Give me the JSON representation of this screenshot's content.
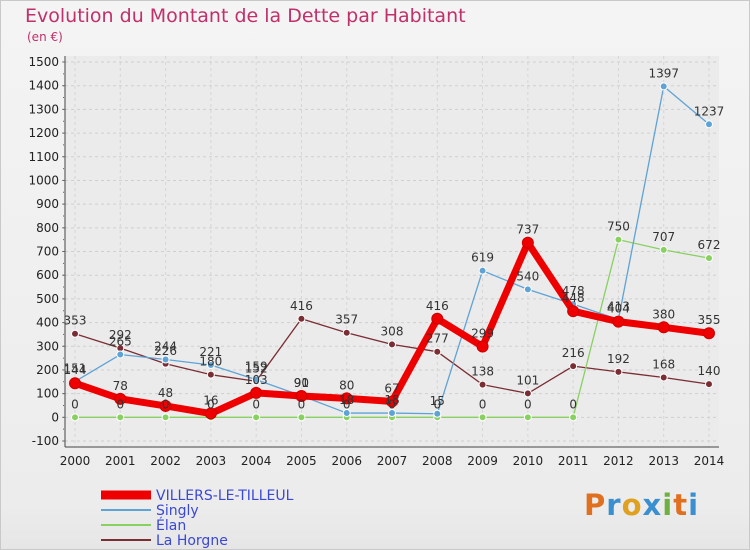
{
  "chart_data": {
    "type": "line",
    "title": "Evolution du Montant de la Dette par Habitant",
    "subtitle": "(en €)",
    "x": [
      "2000",
      "2001",
      "2002",
      "2003",
      "2004",
      "2005",
      "2006",
      "2007",
      "2008",
      "2009",
      "2010",
      "2011",
      "2012",
      "2013",
      "2014"
    ],
    "yticks": [
      -100,
      0,
      100,
      200,
      300,
      400,
      500,
      600,
      700,
      800,
      900,
      1000,
      1100,
      1200,
      1300,
      1400,
      1500
    ],
    "ylim": [
      -100,
      1500
    ],
    "grid": true,
    "legend_position": "bottom-left",
    "series": [
      {
        "name": "VILLERS-LE-TILLEUL",
        "color": "#ee0000",
        "values": [
          144,
          78,
          48,
          16,
          103,
          90,
          80,
          67,
          416,
          299,
          737,
          448,
          404,
          380,
          355
        ],
        "labels": [
          "144",
          "78",
          "48",
          "16",
          "103",
          "90",
          "80",
          "67",
          "416",
          "299",
          "737",
          "448",
          "404",
          "380",
          "355"
        ]
      },
      {
        "name": "Singly",
        "color": "#5ea3d6",
        "values": [
          151,
          265,
          244,
          221,
          159,
          91,
          18,
          18,
          15,
          619,
          540,
          478,
          413,
          1397,
          1237
        ],
        "labels": [
          "151",
          "265",
          "244",
          "221",
          "159",
          "91",
          "18",
          "18",
          "15",
          "619",
          "540",
          "478",
          "413",
          "1397",
          "1237"
        ]
      },
      {
        "name": "Élan",
        "color": "#88d060",
        "values": [
          0,
          0,
          0,
          0,
          0,
          0,
          0,
          0,
          0,
          0,
          0,
          0,
          750,
          707,
          672
        ],
        "labels": [
          "0",
          "0",
          "0",
          "0",
          "0",
          "0",
          "0",
          "0",
          "0",
          "0",
          "0",
          "0",
          "750",
          "707",
          "672"
        ]
      },
      {
        "name": "La Horgne",
        "color": "#7a2d33",
        "values": [
          353,
          292,
          226,
          180,
          152,
          416,
          357,
          308,
          277,
          138,
          101,
          216,
          192,
          168,
          140
        ],
        "labels": [
          "353",
          "292",
          "226",
          "180",
          "152",
          "416",
          "357",
          "308",
          "277",
          "138",
          "101",
          "216",
          "192",
          "168",
          "140"
        ]
      }
    ]
  },
  "logo": {
    "letters": [
      "P",
      "r",
      "o",
      "x",
      "i",
      "t",
      "i"
    ],
    "colors": [
      "#e07020",
      "#3a8fd0",
      "#e0a020",
      "#3a8fd0",
      "#70b040",
      "#e07020",
      "#3a8fd0"
    ]
  }
}
